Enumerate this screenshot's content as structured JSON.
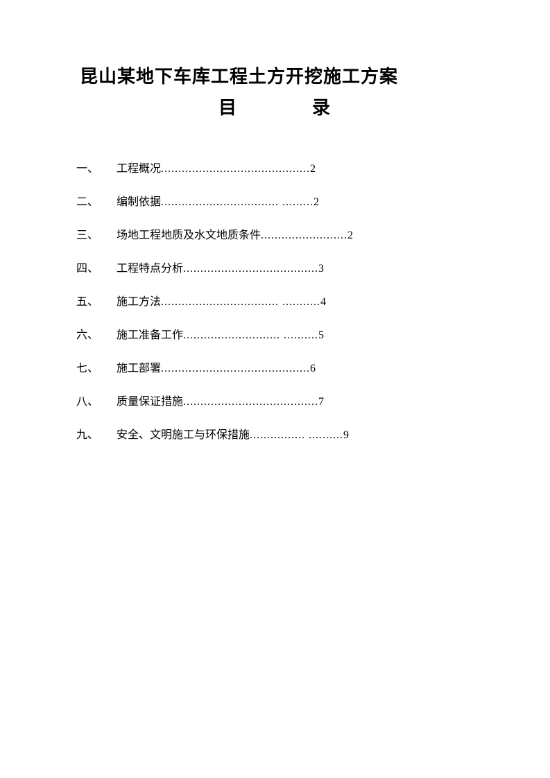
{
  "document": {
    "title": "昆山某地下车库工程土方开挖施工方案",
    "subtitle_left": "目",
    "subtitle_right": "录",
    "background_color": "#ffffff",
    "text_color": "#000000",
    "title_fontsize": 26,
    "body_fontsize": 16,
    "toc": [
      {
        "num": "一、",
        "text": "工程概况",
        "dots": "...........................................",
        "page": "2"
      },
      {
        "num": "二、",
        "text": "编制依据",
        "dots": ".................................. .........",
        "page": "2"
      },
      {
        "num": "三、",
        "text": "场地工程地质及水文地质条件",
        "dots": ".........................",
        "page": "2"
      },
      {
        "num": "四、",
        "text": "工程特点分析",
        "dots": "   .......................................",
        "page": "3"
      },
      {
        "num": "五、",
        "text": "施工方法",
        "dots": ".................................. ...........",
        "page": "4"
      },
      {
        "num": "六、",
        "text": "施工准备工作",
        "dots": "............................   ..........",
        "page": "5"
      },
      {
        "num": "七、",
        "text": "施工部署",
        "dots": "...........................................",
        "page": "6"
      },
      {
        "num": "八、",
        "text": "质量保证措施",
        "dots": ".......................................",
        "page": "7"
      },
      {
        "num": "九、",
        "text": "安全、文明施工与环保措施",
        "dots": "................   ..........",
        "page": "9"
      }
    ]
  }
}
